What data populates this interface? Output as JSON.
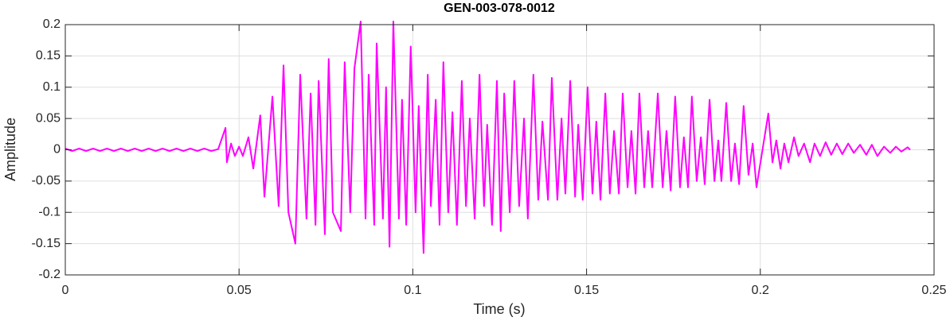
{
  "chart_data": {
    "type": "line",
    "title": "GEN-003-078-0012",
    "xlabel": "Time (s)",
    "ylabel": "Amplitude",
    "color": "#ff00ff",
    "grid": true,
    "xlim": [
      0,
      0.25
    ],
    "xticks": [
      0,
      0.05,
      0.1,
      0.15,
      0.2,
      0.25
    ],
    "ylim": [
      -0.2,
      0.2
    ],
    "yticks": [
      -0.2,
      -0.15,
      -0.1,
      -0.05,
      0,
      0.05,
      0.1,
      0.15,
      0.2
    ],
    "x": [
      0,
      0.002,
      0.004,
      0.006,
      0.008,
      0.01,
      0.012,
      0.014,
      0.016,
      0.018,
      0.02,
      0.022,
      0.024,
      0.026,
      0.028,
      0.03,
      0.032,
      0.034,
      0.036,
      0.038,
      0.04,
      0.042,
      0.044,
      0.0461,
      0.0465,
      0.0477,
      0.0488,
      0.05,
      0.0511,
      0.0527,
      0.0541,
      0.0561,
      0.0573,
      0.0596,
      0.0614,
      0.0628,
      0.0642,
      0.0662,
      0.0676,
      0.0694,
      0.0706,
      0.072,
      0.0729,
      0.0747,
      0.0758,
      0.077,
      0.0793,
      0.0804,
      0.082,
      0.0832,
      0.085,
      0.0864,
      0.0873,
      0.0889,
      0.0896,
      0.0914,
      0.0923,
      0.0933,
      0.0944,
      0.096,
      0.0969,
      0.0981,
      0.0994,
      0.1008,
      0.1017,
      0.1031,
      0.1043,
      0.1052,
      0.1066,
      0.1077,
      0.1088,
      0.1102,
      0.1114,
      0.1127,
      0.1141,
      0.1153,
      0.1164,
      0.1178,
      0.1192,
      0.1205,
      0.1214,
      0.1228,
      0.1242,
      0.1253,
      0.1263,
      0.1279,
      0.1292,
      0.1306,
      0.132,
      0.1331,
      0.1347,
      0.1361,
      0.1373,
      0.1389,
      0.14,
      0.1416,
      0.1428,
      0.1439,
      0.1453,
      0.1467,
      0.1476,
      0.1489,
      0.1503,
      0.1517,
      0.1528,
      0.154,
      0.1554,
      0.1567,
      0.1579,
      0.1593,
      0.1604,
      0.1618,
      0.1629,
      0.1641,
      0.1652,
      0.1666,
      0.1677,
      0.1689,
      0.1705,
      0.1719,
      0.173,
      0.1742,
      0.1755,
      0.1769,
      0.178,
      0.1792,
      0.1803,
      0.1817,
      0.1829,
      0.184,
      0.1854,
      0.1868,
      0.1879,
      0.1888,
      0.1902,
      0.1916,
      0.1927,
      0.1939,
      0.1952,
      0.1966,
      0.1978,
      0.1989,
      0.2023,
      0.2035,
      0.2046,
      0.2058,
      0.2069,
      0.2081,
      0.2097,
      0.211,
      0.2126,
      0.2143,
      0.2156,
      0.2172,
      0.2188,
      0.2204,
      0.222,
      0.2236,
      0.2253,
      0.2269,
      0.2287,
      0.2305,
      0.2321,
      0.2337,
      0.2356,
      0.2374,
      0.239,
      0.2406,
      0.2424,
      0.2431
    ],
    "values": [
      0.002,
      -0.002,
      0.002,
      -0.002,
      0.002,
      -0.002,
      0.002,
      -0.002,
      0.002,
      -0.002,
      0.002,
      -0.002,
      0.002,
      -0.002,
      0.002,
      -0.002,
      0.002,
      -0.002,
      0.002,
      -0.002,
      0.002,
      -0.002,
      0.001,
      0.035,
      -0.02,
      0.01,
      -0.01,
      0.005,
      -0.01,
      0.02,
      -0.03,
      0.055,
      -0.075,
      0.085,
      -0.09,
      0.135,
      -0.1,
      -0.15,
      0.12,
      -0.11,
      0.09,
      -0.12,
      0.11,
      -0.135,
      0.145,
      -0.1,
      -0.13,
      0.14,
      -0.1,
      0.13,
      0.205,
      -0.11,
      0.12,
      -0.12,
      0.17,
      -0.11,
      0.1,
      -0.155,
      0.205,
      -0.11,
      0.08,
      -0.12,
      0.165,
      -0.1,
      0.07,
      -0.165,
      0.12,
      -0.09,
      0.08,
      -0.12,
      0.14,
      -0.1,
      0.06,
      -0.12,
      0.11,
      -0.09,
      0.05,
      -0.11,
      0.12,
      -0.09,
      0.04,
      -0.12,
      0.11,
      -0.13,
      0.09,
      -0.1,
      0.11,
      -0.09,
      0.05,
      -0.11,
      0.12,
      -0.08,
      0.045,
      -0.08,
      0.115,
      -0.08,
      0.05,
      -0.07,
      0.11,
      -0.075,
      0.04,
      -0.08,
      0.1,
      -0.07,
      0.045,
      -0.08,
      0.09,
      -0.07,
      0.03,
      -0.07,
      0.09,
      -0.06,
      0.03,
      -0.07,
      0.09,
      -0.06,
      0.03,
      -0.06,
      0.09,
      -0.06,
      0.03,
      -0.065,
      0.085,
      -0.06,
      0.02,
      -0.06,
      0.085,
      -0.05,
      0.02,
      -0.055,
      0.08,
      -0.05,
      0.015,
      -0.05,
      0.075,
      -0.05,
      0.01,
      -0.055,
      0.07,
      -0.04,
      0.01,
      -0.06,
      0.058,
      -0.02,
      0.015,
      -0.03,
      0.01,
      -0.02,
      0.02,
      -0.01,
      0.01,
      -0.02,
      0.01,
      -0.01,
      0.012,
      -0.008,
      0.01,
      -0.007,
      0.01,
      -0.005,
      0.008,
      -0.008,
      0.008,
      -0.01,
      0.005,
      -0.005,
      0.005,
      -0.003,
      0.004,
      0
    ]
  }
}
